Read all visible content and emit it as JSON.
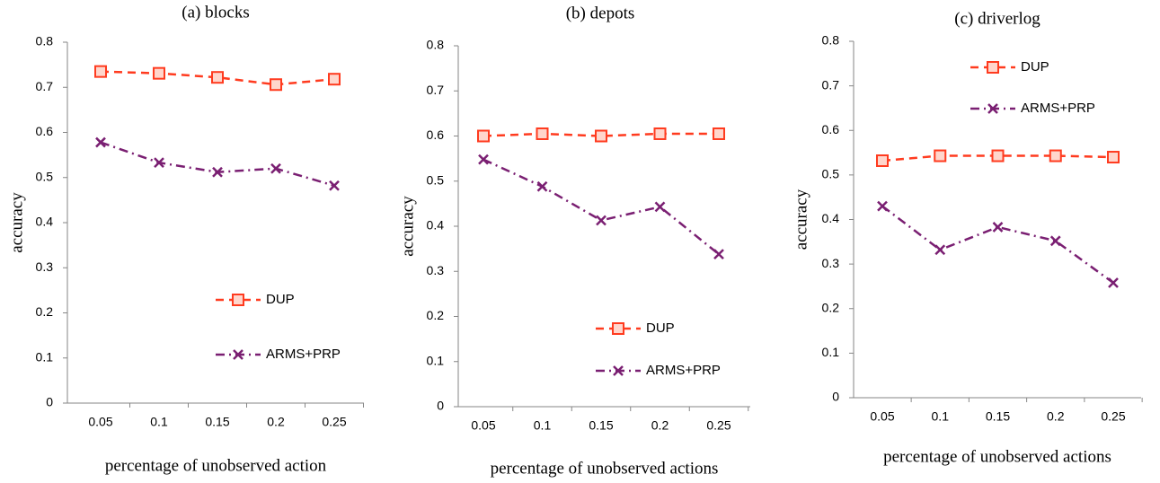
{
  "chart_data": [
    {
      "type": "line",
      "title": "(a) blocks",
      "xlabel": "percentage of unobserved action",
      "ylabel": "accuracy",
      "categories": [
        "0.05",
        "0.1",
        "0.15",
        "0.2",
        "0.25"
      ],
      "series": [
        {
          "name": "DUP",
          "color": "#ff3b1f",
          "values": [
            0.735,
            0.731,
            0.722,
            0.706,
            0.718
          ]
        },
        {
          "name": "ARMS+PRP",
          "color": "#7a1f72",
          "values": [
            0.578,
            0.533,
            0.512,
            0.52,
            0.482
          ]
        }
      ],
      "ylim": [
        0,
        0.8
      ],
      "yticks": [
        0,
        0.1,
        0.2,
        0.3,
        0.4,
        0.5,
        0.6,
        0.7,
        0.8
      ]
    },
    {
      "type": "line",
      "title": "(b) depots",
      "xlabel": "percentage of unobserved actions",
      "ylabel": "accuracy",
      "categories": [
        "0.05",
        "0.1",
        "0.15",
        "0.2",
        "0.25"
      ],
      "series": [
        {
          "name": "DUP",
          "color": "#ff3b1f",
          "values": [
            0.6,
            0.605,
            0.6,
            0.605,
            0.605
          ]
        },
        {
          "name": "ARMS+PRP",
          "color": "#7a1f72",
          "values": [
            0.548,
            0.488,
            0.413,
            0.443,
            0.338
          ]
        }
      ],
      "ylim": [
        0,
        0.8
      ],
      "yticks": [
        0,
        0.1,
        0.2,
        0.3,
        0.4,
        0.5,
        0.6,
        0.7,
        0.8
      ]
    },
    {
      "type": "line",
      "title": "(c) driverlog",
      "xlabel": "percentage of unobserved actions",
      "ylabel": "accuracy",
      "categories": [
        "0.05",
        "0.1",
        "0.15",
        "0.2",
        "0.25"
      ],
      "series": [
        {
          "name": "DUP",
          "color": "#ff3b1f",
          "values": [
            0.532,
            0.543,
            0.543,
            0.543,
            0.54
          ]
        },
        {
          "name": "ARMS+PRP",
          "color": "#7a1f72",
          "values": [
            0.43,
            0.332,
            0.383,
            0.352,
            0.258
          ]
        }
      ],
      "ylim": [
        0,
        0.8
      ],
      "yticks": [
        0,
        0.1,
        0.2,
        0.3,
        0.4,
        0.5,
        0.6,
        0.7,
        0.8
      ]
    }
  ]
}
